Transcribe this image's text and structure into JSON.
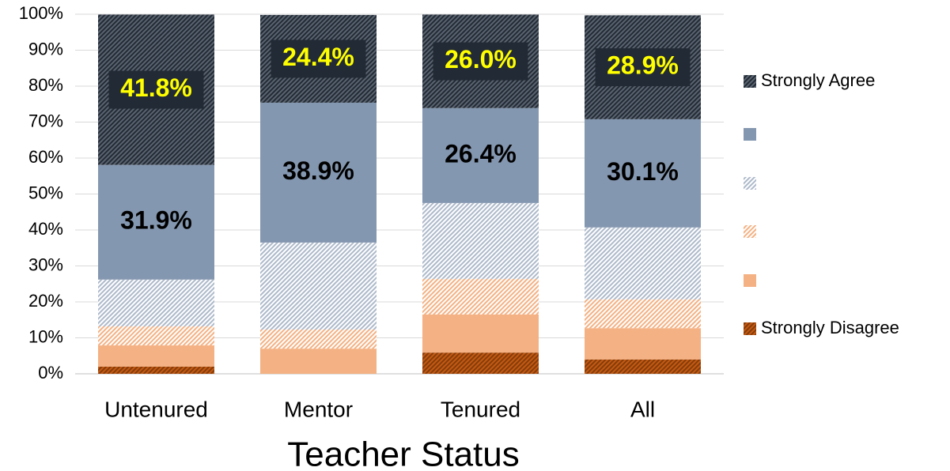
{
  "chart_data": {
    "type": "stacked_bar",
    "x_label": "Teacher Status",
    "categories": [
      "Untenured",
      "Mentor",
      "Tenured",
      "All"
    ],
    "series": [
      {
        "name": "Strongly Disagree",
        "color": "#843c0c",
        "hatch": true,
        "values": [
          2.0,
          0,
          5.9,
          4.0
        ]
      },
      {
        "name": null,
        "color": "#f4b183",
        "hatch": false,
        "values": [
          5.9,
          7.0,
          10.6,
          8.7
        ]
      },
      {
        "name": null,
        "color": "#f4b183",
        "hatch": true,
        "values": [
          5.3,
          5.3,
          9.9,
          8.0
        ]
      },
      {
        "name": null,
        "color": "#adb9ca",
        "hatch": true,
        "values": [
          13.0,
          24.2,
          21.1,
          20.0
        ]
      },
      {
        "name": null,
        "color": "#8497b0",
        "hatch": false,
        "values": [
          31.9,
          38.9,
          26.4,
          30.1
        ],
        "value_labels": [
          "31.9%",
          "38.9%",
          "26.4%",
          "30.1%"
        ],
        "label_color": "#000000"
      },
      {
        "name": "Strongly Agree",
        "color": "#222a35",
        "hatch": true,
        "values": [
          41.8,
          24.4,
          26.0,
          28.9
        ],
        "value_labels": [
          "41.8%",
          "24.4%",
          "26.0%",
          "28.9%"
        ],
        "label_color": "#ffff00"
      }
    ],
    "ylim": [
      0,
      100
    ],
    "yticks": [
      {
        "value": 0,
        "label": "0%"
      },
      {
        "value": 10,
        "label": "10%"
      },
      {
        "value": 20,
        "label": "20%"
      },
      {
        "value": 30,
        "label": "30%"
      },
      {
        "value": 40,
        "label": "40%"
      },
      {
        "value": 50,
        "label": "50%"
      },
      {
        "value": 60,
        "label": "60%"
      },
      {
        "value": 70,
        "label": "70%"
      },
      {
        "value": 80,
        "label": "80%"
      },
      {
        "value": 90,
        "label": "90%"
      },
      {
        "value": 100,
        "label": "100%"
      }
    ],
    "grid": true,
    "legend": "right"
  }
}
